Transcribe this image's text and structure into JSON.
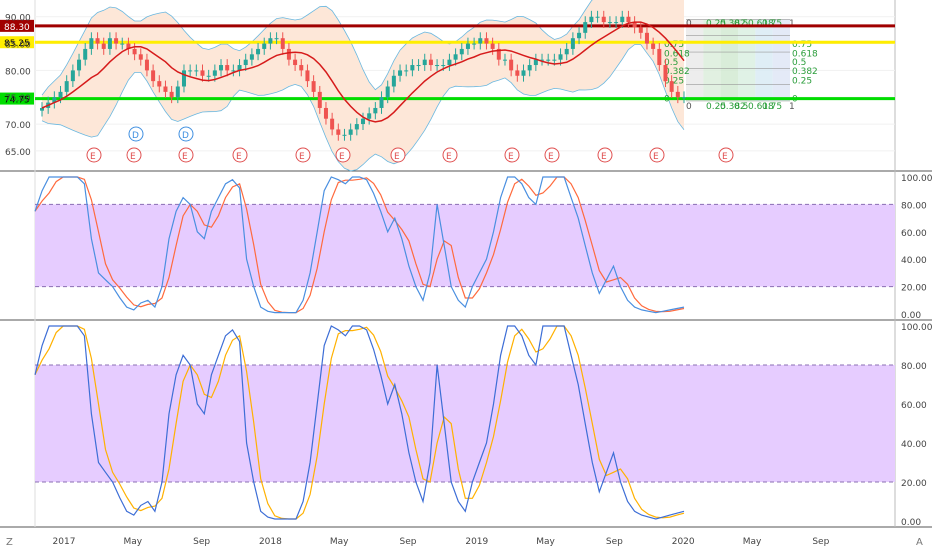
{
  "chart_data": [
    {
      "type": "candlestick",
      "panel": "price",
      "x_axis_labels": [
        "2017",
        "May",
        "Sep",
        "2018",
        "May",
        "Sep",
        "2019",
        "May",
        "Sep",
        "2020",
        "May",
        "Sep"
      ],
      "y_axis": {
        "ticks": [
          "90.00",
          "85.00",
          "80.00",
          "75.00",
          "70.00",
          "65.00"
        ],
        "range": [
          62,
          92
        ]
      },
      "horizontal_levels": [
        {
          "value": 88.3,
          "label": "88.30",
          "color": "#a00000"
        },
        {
          "value": 85.25,
          "label": "85.25",
          "color": "#ffee00"
        },
        {
          "value": 74.75,
          "label": "74.75",
          "color": "#00dd00"
        }
      ],
      "fib_labels_top": [
        "0",
        "0.25",
        "0.382",
        "0.5",
        "0.618",
        "0.75",
        "1"
      ],
      "fib_labels_right": [
        "0.75",
        "0.618",
        "0.5",
        "0.382",
        "0.25",
        "0"
      ],
      "event_markers": {
        "D": [
          "D",
          "D"
        ],
        "E": [
          "E",
          "E",
          "E",
          "E",
          "E",
          "E",
          "E",
          "E",
          "E",
          "E",
          "E",
          "E",
          "E"
        ]
      },
      "close": [
        73,
        74,
        75,
        76,
        78,
        80,
        82,
        84,
        86,
        85,
        84,
        86,
        85,
        85,
        84,
        83,
        82,
        80,
        78,
        77,
        76,
        75,
        77,
        80,
        80,
        80,
        79,
        79,
        80,
        81,
        80,
        80,
        81,
        82,
        83,
        84,
        85,
        86,
        86,
        84,
        82,
        81,
        80,
        78,
        76,
        73,
        71,
        69,
        68,
        68,
        69,
        70,
        71,
        72,
        73,
        75,
        77,
        79,
        80,
        80,
        81,
        81,
        82,
        81,
        81,
        81,
        82,
        83,
        84,
        85,
        85,
        86,
        85,
        84,
        82,
        82,
        80,
        79,
        80,
        81,
        82,
        82,
        82,
        82,
        83,
        84,
        86,
        87,
        89,
        90,
        90,
        89,
        89,
        89,
        90,
        89,
        88,
        87,
        85,
        84,
        81,
        78,
        76,
        75,
        75
      ]
    },
    {
      "type": "line",
      "panel": "stochastic_1",
      "y_axis": {
        "ticks": [
          "100.00",
          "80.00",
          "60.00",
          "40.00",
          "20.00",
          "0.00"
        ],
        "range": [
          0,
          100
        ]
      },
      "band": [
        20,
        80
      ],
      "series": [
        {
          "values": [
            75,
            90,
            100,
            100,
            100,
            100,
            100,
            95,
            55,
            30,
            25,
            20,
            12,
            5,
            3,
            8,
            10,
            5,
            20,
            55,
            75,
            85,
            80,
            60,
            55,
            75,
            85,
            95,
            98,
            92,
            40,
            20,
            5,
            2,
            1,
            1,
            1,
            1,
            10,
            30,
            60,
            90,
            100,
            98,
            95,
            100,
            100,
            98,
            88,
            75,
            60,
            70,
            55,
            35,
            20,
            10,
            30,
            80,
            50,
            20,
            10,
            5,
            20,
            30,
            40,
            60,
            85,
            100,
            100,
            95,
            85,
            80,
            100,
            100,
            100,
            100,
            85,
            70,
            50,
            30,
            15,
            25,
            35,
            20,
            10,
            5,
            3,
            2,
            1,
            2,
            3,
            4,
            5
          ]
        }
      ]
    },
    {
      "type": "line",
      "panel": "stochastic_2",
      "y_axis": {
        "ticks": [
          "100.00",
          "80.00",
          "60.00",
          "40.00",
          "20.00",
          "0.00"
        ],
        "range": [
          0,
          100
        ]
      },
      "band": [
        20,
        80
      ],
      "series": [
        {
          "values": [
            75,
            90,
            100,
            100,
            100,
            100,
            100,
            95,
            55,
            30,
            25,
            20,
            12,
            5,
            3,
            8,
            10,
            5,
            20,
            55,
            75,
            85,
            80,
            60,
            55,
            75,
            85,
            95,
            98,
            92,
            40,
            20,
            5,
            2,
            1,
            1,
            1,
            1,
            10,
            30,
            60,
            90,
            100,
            98,
            95,
            100,
            100,
            98,
            88,
            75,
            60,
            70,
            55,
            35,
            20,
            10,
            30,
            80,
            50,
            20,
            10,
            5,
            20,
            30,
            40,
            60,
            85,
            100,
            100,
            95,
            85,
            80,
            100,
            100,
            100,
            100,
            85,
            70,
            50,
            30,
            15,
            25,
            35,
            20,
            10,
            5,
            3,
            2,
            1,
            2,
            3,
            4,
            5
          ]
        }
      ]
    }
  ],
  "corner_left": "Z",
  "corner_right": "A",
  "colors": {
    "up": "#26a69a",
    "down": "#ef5350",
    "ma": "#d61b1b",
    "bb": "#6ab8e0",
    "bb_fill": "#fde7d8",
    "band": "#e6ccff",
    "k1": "#4a8fe0",
    "d1": "#ff6a3d",
    "k2": "#3d6ed6",
    "d2": "#ffb100"
  }
}
